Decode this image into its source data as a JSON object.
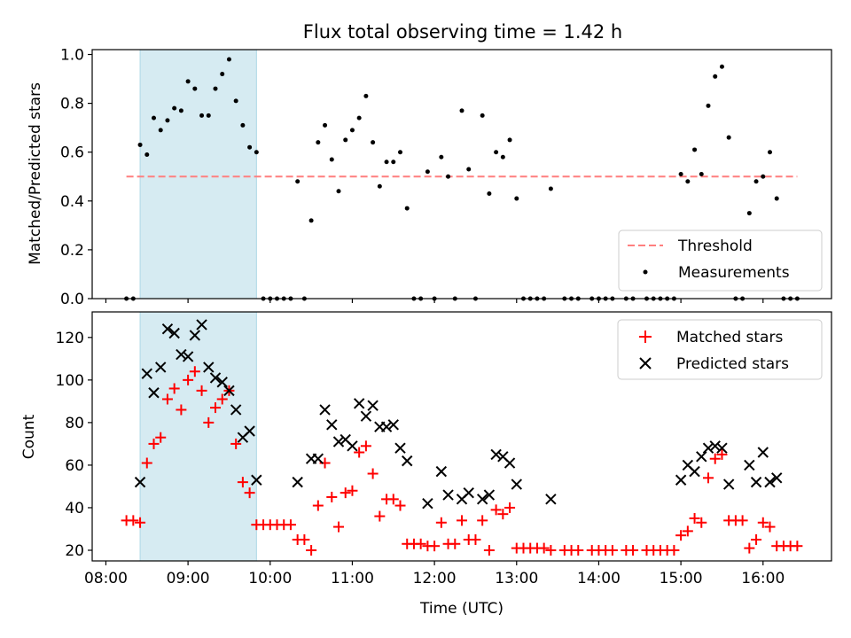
{
  "chart_data": [
    {
      "type": "scatter",
      "title": "Flux total observing time = 1.42 h",
      "ylabel": "Matched/Predicted stars",
      "ylim": [
        0,
        1.02
      ],
      "yticks": [
        "0.0",
        "0.2",
        "0.4",
        "0.6",
        "0.8",
        "1.0"
      ],
      "grid": false,
      "legend_position": "lower right",
      "highlight_span": {
        "x_from": "08:25",
        "x_to": "09:50",
        "color": "#add8e6"
      },
      "threshold": {
        "name": "Threshold",
        "value": 0.5,
        "x_from": "08:15",
        "x_to": "16:25",
        "color": "#ff7f7f"
      },
      "series": [
        {
          "name": "Measurements",
          "color": "#000000",
          "marker": "dot",
          "points": [
            [
              "08:15",
              0.0
            ],
            [
              "08:20",
              0.0
            ],
            [
              "08:25",
              0.63
            ],
            [
              "08:30",
              0.59
            ],
            [
              "08:35",
              0.74
            ],
            [
              "08:40",
              0.69
            ],
            [
              "08:45",
              0.73
            ],
            [
              "08:50",
              0.78
            ],
            [
              "08:55",
              0.77
            ],
            [
              "09:00",
              0.89
            ],
            [
              "09:05",
              0.86
            ],
            [
              "09:10",
              0.75
            ],
            [
              "09:15",
              0.75
            ],
            [
              "09:20",
              0.86
            ],
            [
              "09:25",
              0.92
            ],
            [
              "09:30",
              0.98
            ],
            [
              "09:35",
              0.81
            ],
            [
              "09:40",
              0.71
            ],
            [
              "09:45",
              0.62
            ],
            [
              "09:50",
              0.6
            ],
            [
              "09:55",
              0.0
            ],
            [
              "10:00",
              0.0
            ],
            [
              "10:05",
              0.0
            ],
            [
              "10:10",
              0.0
            ],
            [
              "10:15",
              0.0
            ],
            [
              "10:20",
              0.48
            ],
            [
              "10:25",
              0.0
            ],
            [
              "10:30",
              0.32
            ],
            [
              "10:35",
              0.64
            ],
            [
              "10:40",
              0.71
            ],
            [
              "10:45",
              0.57
            ],
            [
              "10:50",
              0.44
            ],
            [
              "10:55",
              0.65
            ],
            [
              "11:00",
              0.69
            ],
            [
              "11:05",
              0.74
            ],
            [
              "11:10",
              0.83
            ],
            [
              "11:15",
              0.64
            ],
            [
              "11:20",
              0.46
            ],
            [
              "11:25",
              0.56
            ],
            [
              "11:30",
              0.56
            ],
            [
              "11:35",
              0.6
            ],
            [
              "11:40",
              0.37
            ],
            [
              "11:45",
              0.0
            ],
            [
              "11:50",
              0.0
            ],
            [
              "11:55",
              0.52
            ],
            [
              "12:00",
              0.0
            ],
            [
              "12:05",
              0.58
            ],
            [
              "12:10",
              0.5
            ],
            [
              "12:15",
              0.0
            ],
            [
              "12:20",
              0.77
            ],
            [
              "12:25",
              0.53
            ],
            [
              "12:30",
              0.0
            ],
            [
              "12:35",
              0.75
            ],
            [
              "12:40",
              0.43
            ],
            [
              "12:45",
              0.6
            ],
            [
              "12:50",
              0.58
            ],
            [
              "12:55",
              0.65
            ],
            [
              "13:00",
              0.41
            ],
            [
              "13:05",
              0.0
            ],
            [
              "13:10",
              0.0
            ],
            [
              "13:15",
              0.0
            ],
            [
              "13:20",
              0.0
            ],
            [
              "13:25",
              0.45
            ],
            [
              "13:35",
              0.0
            ],
            [
              "13:40",
              0.0
            ],
            [
              "13:45",
              0.0
            ],
            [
              "13:55",
              0.0
            ],
            [
              "14:00",
              0.0
            ],
            [
              "14:05",
              0.0
            ],
            [
              "14:10",
              0.0
            ],
            [
              "14:20",
              0.0
            ],
            [
              "14:25",
              0.0
            ],
            [
              "14:35",
              0.0
            ],
            [
              "14:40",
              0.0
            ],
            [
              "14:45",
              0.0
            ],
            [
              "14:50",
              0.0
            ],
            [
              "14:55",
              0.0
            ],
            [
              "15:00",
              0.51
            ],
            [
              "15:05",
              0.48
            ],
            [
              "15:10",
              0.61
            ],
            [
              "15:15",
              0.51
            ],
            [
              "15:20",
              0.79
            ],
            [
              "15:25",
              0.91
            ],
            [
              "15:30",
              0.95
            ],
            [
              "15:35",
              0.66
            ],
            [
              "15:40",
              0.0
            ],
            [
              "15:45",
              0.0
            ],
            [
              "15:50",
              0.35
            ],
            [
              "15:55",
              0.48
            ],
            [
              "16:00",
              0.5
            ],
            [
              "16:05",
              0.6
            ],
            [
              "16:10",
              0.41
            ],
            [
              "16:15",
              0.0
            ],
            [
              "16:20",
              0.0
            ],
            [
              "16:25",
              0.0
            ]
          ]
        }
      ]
    },
    {
      "type": "scatter",
      "xlabel": "Time (UTC)",
      "ylabel": "Count",
      "ylim": [
        15,
        132
      ],
      "yticks": [
        "20",
        "40",
        "60",
        "80",
        "100",
        "120"
      ],
      "xlim": [
        "07:50",
        "16:50"
      ],
      "xticks": [
        "08:00",
        "09:00",
        "10:00",
        "11:00",
        "12:00",
        "13:00",
        "14:00",
        "15:00",
        "16:00"
      ],
      "grid": false,
      "legend_position": "upper right",
      "highlight_span": {
        "x_from": "08:25",
        "x_to": "09:50",
        "color": "#add8e6"
      },
      "series": [
        {
          "name": "Matched stars",
          "color": "#ff0000",
          "marker": "plus",
          "points": [
            [
              "08:15",
              34
            ],
            [
              "08:20",
              34
            ],
            [
              "08:25",
              33
            ],
            [
              "08:30",
              61
            ],
            [
              "08:35",
              70
            ],
            [
              "08:40",
              73
            ],
            [
              "08:45",
              91
            ],
            [
              "08:50",
              96
            ],
            [
              "08:55",
              86
            ],
            [
              "09:00",
              100
            ],
            [
              "09:05",
              104
            ],
            [
              "09:10",
              95
            ],
            [
              "09:15",
              80
            ],
            [
              "09:20",
              87
            ],
            [
              "09:25",
              91
            ],
            [
              "09:30",
              95
            ],
            [
              "09:35",
              70
            ],
            [
              "09:40",
              52
            ],
            [
              "09:45",
              47
            ],
            [
              "09:50",
              32
            ],
            [
              "09:55",
              32
            ],
            [
              "10:00",
              32
            ],
            [
              "10:05",
              32
            ],
            [
              "10:10",
              32
            ],
            [
              "10:15",
              32
            ],
            [
              "10:20",
              25
            ],
            [
              "10:25",
              25
            ],
            [
              "10:30",
              20
            ],
            [
              "10:35",
              41
            ],
            [
              "10:40",
              61
            ],
            [
              "10:45",
              45
            ],
            [
              "10:50",
              31
            ],
            [
              "10:55",
              47
            ],
            [
              "11:00",
              48
            ],
            [
              "11:05",
              66
            ],
            [
              "11:10",
              69
            ],
            [
              "11:15",
              56
            ],
            [
              "11:20",
              36
            ],
            [
              "11:25",
              44
            ],
            [
              "11:30",
              44
            ],
            [
              "11:35",
              41
            ],
            [
              "11:40",
              23
            ],
            [
              "11:45",
              23
            ],
            [
              "11:50",
              23
            ],
            [
              "11:55",
              22
            ],
            [
              "12:00",
              22
            ],
            [
              "12:05",
              33
            ],
            [
              "12:10",
              23
            ],
            [
              "12:15",
              23
            ],
            [
              "12:20",
              34
            ],
            [
              "12:25",
              25
            ],
            [
              "12:30",
              25
            ],
            [
              "12:35",
              34
            ],
            [
              "12:40",
              20
            ],
            [
              "12:45",
              39
            ],
            [
              "12:50",
              37
            ],
            [
              "12:55",
              40
            ],
            [
              "13:00",
              21
            ],
            [
              "13:05",
              21
            ],
            [
              "13:10",
              21
            ],
            [
              "13:15",
              21
            ],
            [
              "13:20",
              21
            ],
            [
              "13:25",
              20
            ],
            [
              "13:35",
              20
            ],
            [
              "13:40",
              20
            ],
            [
              "13:45",
              20
            ],
            [
              "13:55",
              20
            ],
            [
              "14:00",
              20
            ],
            [
              "14:05",
              20
            ],
            [
              "14:10",
              20
            ],
            [
              "14:20",
              20
            ],
            [
              "14:25",
              20
            ],
            [
              "14:35",
              20
            ],
            [
              "14:40",
              20
            ],
            [
              "14:45",
              20
            ],
            [
              "14:50",
              20
            ],
            [
              "14:55",
              20
            ],
            [
              "15:00",
              27
            ],
            [
              "15:05",
              29
            ],
            [
              "15:10",
              35
            ],
            [
              "15:15",
              33
            ],
            [
              "15:20",
              54
            ],
            [
              "15:25",
              63
            ],
            [
              "15:30",
              65
            ],
            [
              "15:35",
              34
            ],
            [
              "15:40",
              34
            ],
            [
              "15:45",
              34
            ],
            [
              "15:50",
              21
            ],
            [
              "15:55",
              25
            ],
            [
              "16:00",
              33
            ],
            [
              "16:05",
              31
            ],
            [
              "16:10",
              22
            ],
            [
              "16:15",
              22
            ],
            [
              "16:20",
              22
            ],
            [
              "16:25",
              22
            ]
          ]
        },
        {
          "name": "Predicted stars",
          "color": "#000000",
          "marker": "x",
          "points": [
            [
              "08:25",
              52
            ],
            [
              "08:30",
              103
            ],
            [
              "08:35",
              94
            ],
            [
              "08:40",
              106
            ],
            [
              "08:45",
              124
            ],
            [
              "08:50",
              122
            ],
            [
              "08:55",
              112
            ],
            [
              "09:00",
              111
            ],
            [
              "09:05",
              121
            ],
            [
              "09:10",
              126
            ],
            [
              "09:15",
              106
            ],
            [
              "09:20",
              101
            ],
            [
              "09:25",
              99
            ],
            [
              "09:30",
              95
            ],
            [
              "09:35",
              86
            ],
            [
              "09:40",
              73
            ],
            [
              "09:45",
              76
            ],
            [
              "09:50",
              53
            ],
            [
              "10:20",
              52
            ],
            [
              "10:30",
              63
            ],
            [
              "10:35",
              63
            ],
            [
              "10:40",
              86
            ],
            [
              "10:45",
              79
            ],
            [
              "10:50",
              71
            ],
            [
              "10:55",
              72
            ],
            [
              "11:00",
              69
            ],
            [
              "11:05",
              89
            ],
            [
              "11:10",
              83
            ],
            [
              "11:15",
              88
            ],
            [
              "11:20",
              78
            ],
            [
              "11:25",
              78
            ],
            [
              "11:30",
              79
            ],
            [
              "11:35",
              68
            ],
            [
              "11:40",
              62
            ],
            [
              "11:55",
              42
            ],
            [
              "12:05",
              57
            ],
            [
              "12:10",
              46
            ],
            [
              "12:20",
              44
            ],
            [
              "12:25",
              47
            ],
            [
              "12:35",
              44
            ],
            [
              "12:40",
              46
            ],
            [
              "12:45",
              65
            ],
            [
              "12:50",
              64
            ],
            [
              "12:55",
              61
            ],
            [
              "13:00",
              51
            ],
            [
              "13:25",
              44
            ],
            [
              "15:00",
              53
            ],
            [
              "15:05",
              60
            ],
            [
              "15:10",
              57
            ],
            [
              "15:15",
              64
            ],
            [
              "15:20",
              68
            ],
            [
              "15:25",
              69
            ],
            [
              "15:30",
              68
            ],
            [
              "15:35",
              51
            ],
            [
              "15:50",
              60
            ],
            [
              "15:55",
              52
            ],
            [
              "16:00",
              66
            ],
            [
              "16:05",
              52
            ],
            [
              "16:10",
              54
            ]
          ]
        }
      ]
    }
  ]
}
